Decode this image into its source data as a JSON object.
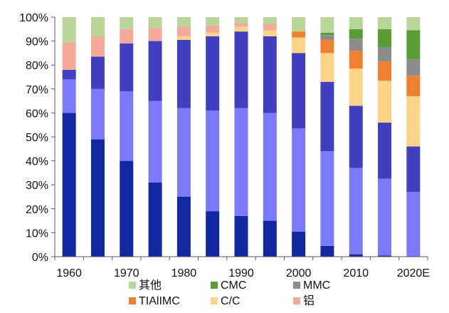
{
  "chart_data": {
    "type": "bar",
    "stacked": true,
    "percent": true,
    "title": "",
    "xlabel": "",
    "ylabel": "",
    "ylim": [
      0,
      100
    ],
    "yticks": [
      "0%",
      "10%",
      "20%",
      "30%",
      "40%",
      "50%",
      "60%",
      "70%",
      "80%",
      "90%",
      "100%"
    ],
    "xtick_labels": [
      "1960",
      "1970",
      "1980",
      "1990",
      "2000",
      "2010",
      "2020E"
    ],
    "categories": [
      "1960",
      "1965",
      "1970",
      "1975",
      "1980",
      "1985",
      "1990",
      "1995",
      "2000",
      "2005",
      "2010",
      "2015",
      "2020E"
    ],
    "grid": false,
    "legend_position": "bottom",
    "series": [
      {
        "color": "#1228a0",
        "values": [
          60,
          49,
          40,
          31,
          25,
          19,
          17,
          15,
          10.5,
          4.5,
          1,
          0.5,
          0
        ]
      },
      {
        "color": "#7b7bfa",
        "values": [
          14,
          21,
          29,
          34,
          37,
          42,
          45,
          45,
          43,
          39.5,
          36,
          32,
          27
        ]
      },
      {
        "color": "#3f3fbf",
        "values": [
          4,
          13.5,
          20,
          25,
          28.5,
          31,
          32,
          32,
          31.5,
          29,
          26,
          23.5,
          19
        ]
      },
      {
        "name": "C/C",
        "color": "#fdd387",
        "values": [
          0,
          0,
          0,
          0,
          1.5,
          1.5,
          2,
          2.5,
          6.5,
          12,
          15.5,
          17.5,
          21
        ]
      },
      {
        "name": "TIAlIMC",
        "color": "#f08031",
        "values": [
          0,
          0,
          0,
          0,
          0,
          0,
          0,
          0,
          2.5,
          5.5,
          7.5,
          8,
          8.5
        ]
      },
      {
        "name": "MMC",
        "color": "#8c8c8c",
        "values": [
          0,
          0,
          0,
          0,
          0,
          0,
          0,
          0,
          0,
          2,
          5,
          6,
          7
        ]
      },
      {
        "name": "CMC",
        "color": "#5a9d33",
        "values": [
          0,
          0,
          0,
          0,
          0,
          0,
          0,
          0,
          0,
          1,
          4,
          7.5,
          12
        ]
      },
      {
        "name": "铝",
        "color": "#f4a99a",
        "values": [
          11.5,
          8.5,
          6,
          5.5,
          4,
          3,
          1.5,
          2.5,
          0,
          0,
          0,
          0,
          0
        ]
      },
      {
        "name": "其他",
        "color": "#b7d698",
        "values": [
          10.5,
          8,
          5,
          4.5,
          4,
          3.5,
          2.5,
          3,
          6,
          6.5,
          5,
          5,
          5.5
        ]
      }
    ],
    "legend": [
      {
        "label": "其他",
        "color": "#b7d698"
      },
      {
        "label": "CMC",
        "color": "#5a9d33"
      },
      {
        "label": "MMC",
        "color": "#8c8c8c"
      },
      {
        "label": "TIAlIMC",
        "color": "#f08031"
      },
      {
        "label": "C/C",
        "color": "#fdd387"
      },
      {
        "label": "铝",
        "color": "#f4a99a"
      }
    ]
  }
}
